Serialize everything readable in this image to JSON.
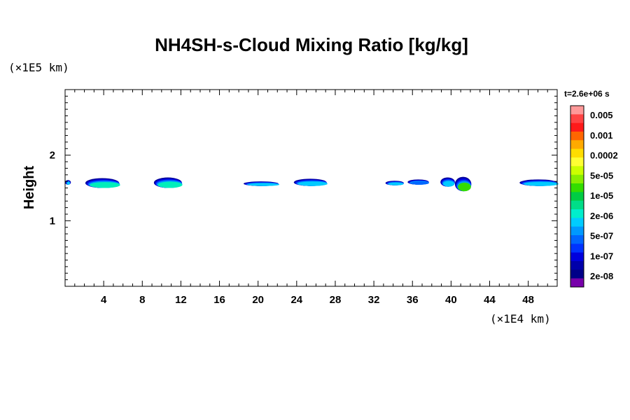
{
  "chart_data": {
    "type": "heatmap",
    "title": "NH4SH-s-Cloud Mixing Ratio [kg/kg]",
    "xlabel": "",
    "ylabel": "Height",
    "x_unit": "(×1E4 km)",
    "y_unit": "(×1E5 km)",
    "xlim": [
      0,
      51
    ],
    "ylim": [
      0,
      3
    ],
    "x_ticks": [
      4,
      8,
      12,
      16,
      20,
      24,
      28,
      32,
      36,
      40,
      44,
      48
    ],
    "y_ticks": [
      1,
      2
    ],
    "time_label": "t=2.6e+06 s",
    "colorbar": {
      "labels": [
        "0.005",
        "0.001",
        "0.0002",
        "5e-05",
        "1e-05",
        "2e-06",
        "5e-07",
        "1e-07",
        "2e-08"
      ],
      "colors": [
        "#ff9999",
        "#ff4444",
        "#ff1a1a",
        "#ff6600",
        "#ffaa00",
        "#ffdd00",
        "#ffff33",
        "#ccff00",
        "#88ee00",
        "#33dd00",
        "#00cc44",
        "#00dd88",
        "#00eecc",
        "#00ccff",
        "#0099ff",
        "#0066ff",
        "#0033ff",
        "#0000dd",
        "#0000aa",
        "#000088",
        "#7700aa"
      ]
    },
    "clouds": [
      {
        "x": [
          0,
          0.6
        ],
        "y": [
          1.55,
          1.62
        ],
        "level": "5e-07"
      },
      {
        "x": [
          2.1,
          5.6
        ],
        "y": [
          1.5,
          1.65
        ],
        "level": "2e-06"
      },
      {
        "x": [
          9.2,
          12.1
        ],
        "y": [
          1.5,
          1.66
        ],
        "level": "2e-06"
      },
      {
        "x": [
          18.5,
          22.1
        ],
        "y": [
          1.53,
          1.6
        ],
        "level": "5e-07"
      },
      {
        "x": [
          23.7,
          27.1
        ],
        "y": [
          1.53,
          1.64
        ],
        "level": "5e-07"
      },
      {
        "x": [
          33.2,
          35.1
        ],
        "y": [
          1.54,
          1.61
        ],
        "level": "5e-07"
      },
      {
        "x": [
          35.5,
          37.7
        ],
        "y": [
          1.55,
          1.63
        ],
        "level": "1e-07"
      },
      {
        "x": [
          38.9,
          40.4
        ],
        "y": [
          1.52,
          1.66
        ],
        "level": "5e-07"
      },
      {
        "x": [
          40.4,
          42.1
        ],
        "y": [
          1.45,
          1.67
        ],
        "level": "1e-05"
      },
      {
        "x": [
          47.1,
          51
        ],
        "y": [
          1.53,
          1.63
        ],
        "level": "5e-07"
      }
    ]
  }
}
